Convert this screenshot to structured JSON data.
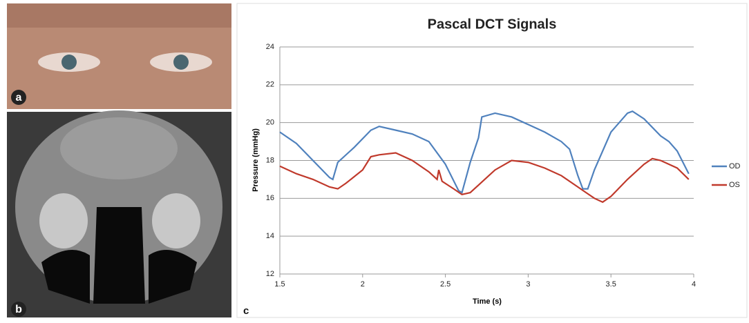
{
  "panels": {
    "a": "a",
    "b": "b",
    "c": "c"
  },
  "chart_data": {
    "type": "line",
    "title": "Pascal DCT Signals",
    "x_label": "Time (s)",
    "y_label": "Pressure (mmHg)",
    "xlim": [
      1.5,
      4
    ],
    "xticks": [
      1.5,
      2,
      2.5,
      3,
      3.5,
      4
    ],
    "ylim": [
      12,
      24
    ],
    "yticks": [
      12,
      14,
      16,
      18,
      20,
      22,
      24
    ],
    "grid": true,
    "legend": "right",
    "series": [
      {
        "name": "OD",
        "color": "#4f81bd",
        "x": [
          1.5,
          1.6,
          1.7,
          1.8,
          1.82,
          1.85,
          1.95,
          2.05,
          2.1,
          2.2,
          2.3,
          2.4,
          2.5,
          2.58,
          2.6,
          2.65,
          2.7,
          2.72,
          2.8,
          2.9,
          3.0,
          3.1,
          3.2,
          3.25,
          3.3,
          3.33,
          3.36,
          3.4,
          3.5,
          3.6,
          3.63,
          3.7,
          3.8,
          3.85,
          3.9,
          3.97
        ],
        "values": [
          19.5,
          18.9,
          18.0,
          17.1,
          17.0,
          17.9,
          18.7,
          19.6,
          19.8,
          19.6,
          19.4,
          19.0,
          17.8,
          16.4,
          16.3,
          17.9,
          19.2,
          20.3,
          20.5,
          20.3,
          19.9,
          19.5,
          19.0,
          18.6,
          17.2,
          16.5,
          16.5,
          17.5,
          19.5,
          20.5,
          20.6,
          20.2,
          19.3,
          19.0,
          18.5,
          17.3
        ]
      },
      {
        "name": "OS",
        "color": "#c0392b",
        "x": [
          1.5,
          1.6,
          1.7,
          1.8,
          1.85,
          1.9,
          2.0,
          2.05,
          2.1,
          2.2,
          2.3,
          2.4,
          2.45,
          2.46,
          2.48,
          2.55,
          2.6,
          2.65,
          2.7,
          2.8,
          2.9,
          3.0,
          3.1,
          3.2,
          3.3,
          3.35,
          3.4,
          3.45,
          3.5,
          3.6,
          3.7,
          3.75,
          3.8,
          3.9,
          3.97
        ],
        "values": [
          17.7,
          17.3,
          17.0,
          16.6,
          16.5,
          16.8,
          17.5,
          18.2,
          18.3,
          18.4,
          18.0,
          17.4,
          17.0,
          17.5,
          16.9,
          16.5,
          16.2,
          16.3,
          16.7,
          17.5,
          18.0,
          17.9,
          17.6,
          17.2,
          16.6,
          16.3,
          16.0,
          15.8,
          16.1,
          17.0,
          17.8,
          18.1,
          18.0,
          17.6,
          17.0
        ]
      }
    ]
  }
}
